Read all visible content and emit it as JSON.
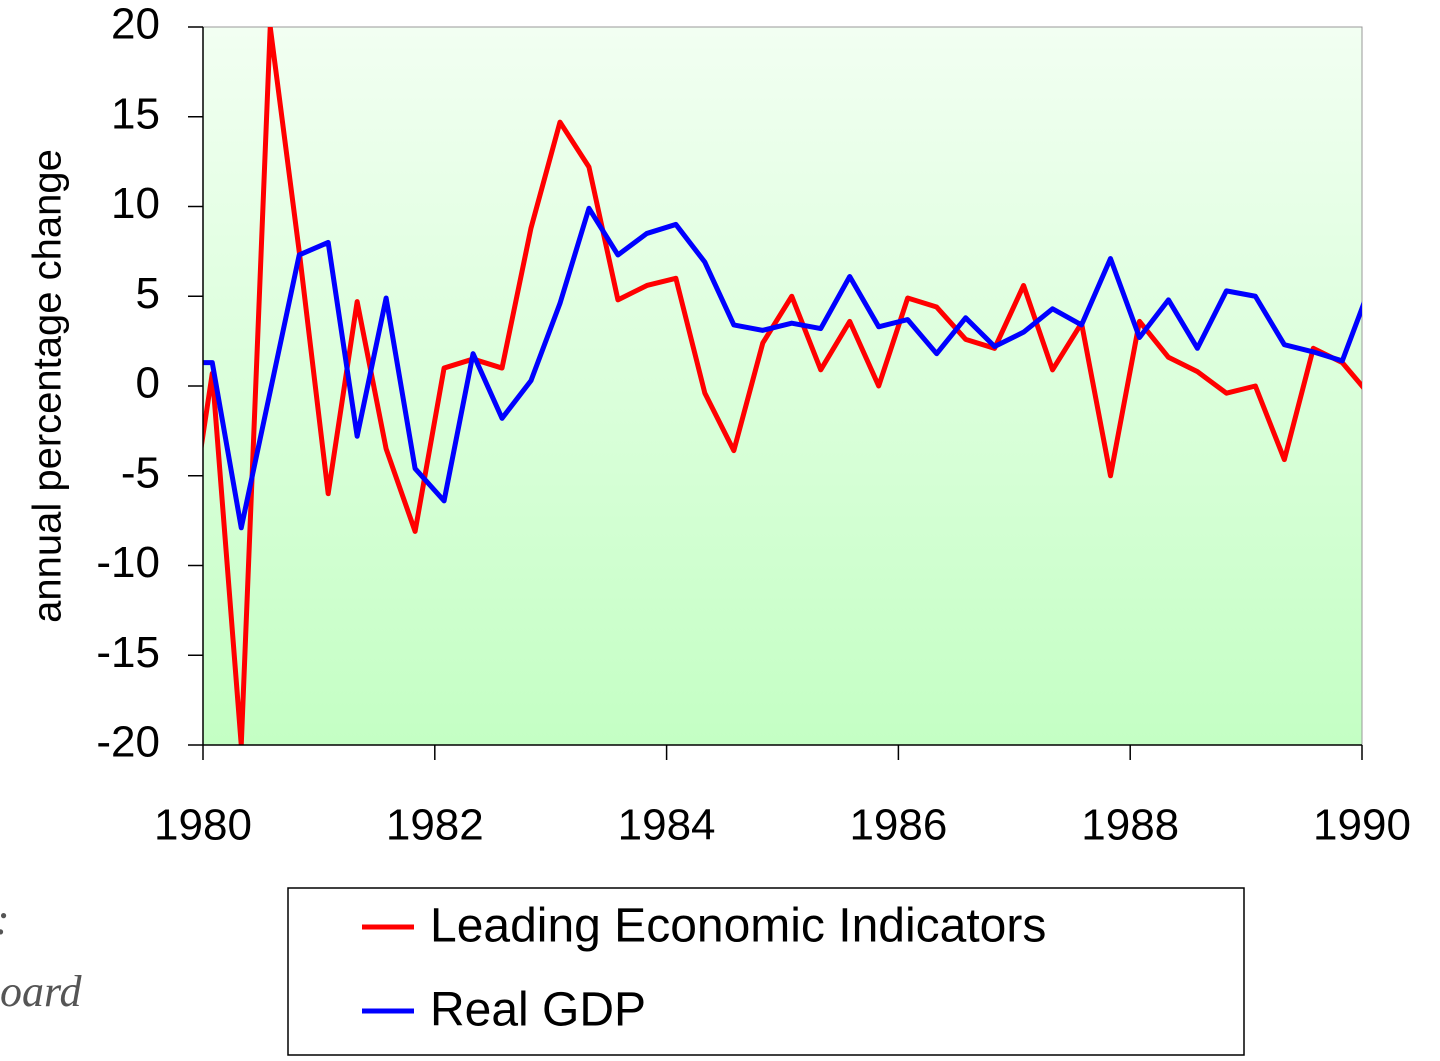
{
  "chart_data": {
    "type": "line",
    "y_label": "annual percentage change",
    "notes": [
      ":",
      "oard"
    ],
    "x": [
      1979.83,
      1980.08,
      1980.33,
      1980.58,
      1980.83,
      1981.08,
      1981.33,
      1981.58,
      1981.83,
      1982.08,
      1982.33,
      1982.58,
      1982.83,
      1983.08,
      1983.33,
      1983.58,
      1983.83,
      1984.08,
      1984.33,
      1984.58,
      1984.83,
      1985.08,
      1985.33,
      1985.58,
      1985.83,
      1986.08,
      1986.33,
      1986.58,
      1986.83,
      1987.08,
      1987.33,
      1987.58,
      1987.83,
      1988.08,
      1988.33,
      1988.58,
      1988.83,
      1989.08,
      1989.33,
      1989.58,
      1989.83,
      1990.08
    ],
    "series": [
      {
        "name": "Leading Economic Indicators",
        "color": "#ff0000",
        "values": [
          -10,
          0.7,
          -20,
          20,
          7.5,
          -6,
          4.7,
          -3.5,
          -8.1,
          1,
          1.5,
          1,
          8.8,
          14.7,
          12.2,
          4.8,
          5.6,
          6,
          -0.4,
          -3.6,
          2.4,
          5,
          0.9,
          3.6,
          0,
          4.9,
          4.4,
          2.6,
          2.1,
          5.6,
          0.9,
          3.5,
          -5,
          3.6,
          1.6,
          0.8,
          -0.4,
          0,
          -4.1,
          2.1,
          1.3,
          -0.6
        ]
      },
      {
        "name": "Real GDP",
        "color": "#0000ff",
        "values": [
          1.3,
          1.3,
          -7.9,
          -0.3,
          7.3,
          8,
          -2.8,
          4.9,
          -4.6,
          -6.4,
          1.8,
          -1.8,
          0.3,
          4.6,
          9.9,
          7.3,
          8.5,
          9,
          6.9,
          3.4,
          3.1,
          3.5,
          3.2,
          6.1,
          3.3,
          3.7,
          1.8,
          3.8,
          2.2,
          3,
          4.3,
          3.4,
          7.1,
          2.7,
          4.8,
          2.1,
          5.3,
          5,
          2.3,
          1.9,
          1.4,
          5.7
        ]
      }
    ],
    "xlim": [
      1980,
      1990
    ],
    "xticks": [
      1980,
      1982,
      1984,
      1986,
      1988,
      1990
    ],
    "ylim": [
      -20,
      20
    ],
    "yticks": [
      -20,
      -15,
      -10,
      -5,
      0,
      5,
      10,
      15,
      20
    ],
    "legend": "bottom"
  }
}
